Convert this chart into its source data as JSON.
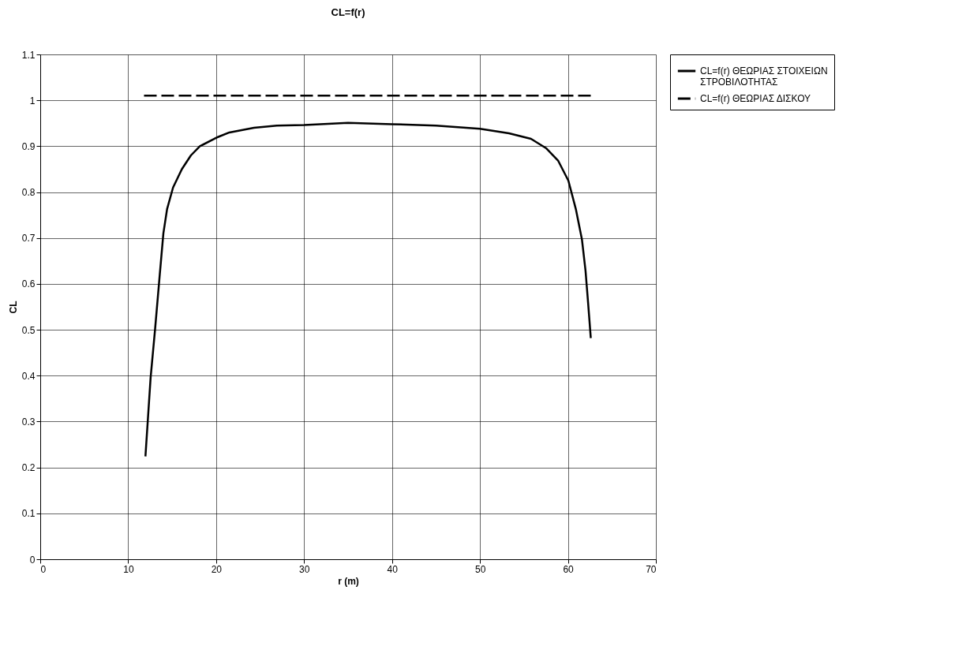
{
  "chart_data": {
    "type": "line",
    "title": "CL=f(r)",
    "xlabel": "r (m)",
    "ylabel": "CL",
    "xlim": [
      0,
      70
    ],
    "xticks": [
      0,
      10,
      20,
      30,
      40,
      50,
      60,
      70
    ],
    "ylim": [
      0,
      1.1
    ],
    "yticks": [
      0,
      0.1,
      0.2,
      0.3,
      0.4,
      0.5,
      0.6,
      0.7,
      0.8,
      0.9,
      1,
      1.1
    ],
    "grid": true,
    "legend": "right",
    "marker": "none",
    "series": [
      {
        "name": "CL=f(r) ΘΕΩΡΙΑΣ ΣΤΟΙΧΕΙΩΝ ΣΤΡΟΒΙΛΟΤΗΤΑΣ",
        "color": "#000000",
        "line_style": "solid",
        "x": [
          11.96,
          12.55,
          13.06,
          13.57,
          14.0,
          14.42,
          15.1,
          16.1,
          17.13,
          18.15,
          20.2,
          21.5,
          24.3,
          26.9,
          30,
          35,
          40,
          45,
          50,
          53.3,
          55.8,
          57.5,
          58.9,
          60.05,
          60.9,
          61.6,
          62.0,
          62.3,
          62.6
        ],
        "values": [
          0.224,
          0.396,
          0.502,
          0.616,
          0.71,
          0.763,
          0.81,
          0.85,
          0.88,
          0.9,
          0.92,
          0.93,
          0.94,
          0.945,
          0.946,
          0.951,
          0.948,
          0.945,
          0.938,
          0.928,
          0.916,
          0.896,
          0.868,
          0.825,
          0.763,
          0.696,
          0.629,
          0.557,
          0.482
        ]
      },
      {
        "name": "CL=f(r) ΘΕΩΡΙΑΣ ΔΙΣΚΟΥ",
        "color": "#000000",
        "line_style": "dashed",
        "x": [
          11.8,
          62.6
        ],
        "values": [
          1.01,
          1.01
        ]
      }
    ]
  }
}
